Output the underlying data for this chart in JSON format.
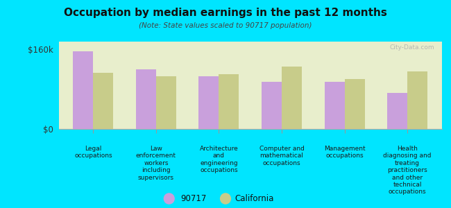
{
  "title": "Occupation by median earnings in the past 12 months",
  "subtitle": "(Note: State values scaled to 90717 population)",
  "categories": [
    "Legal\noccupations",
    "Law\nenforcement\nworkers\nincluding\nsupervisors",
    "Architecture\nand\nengineering\noccupations",
    "Computer and\nmathematical\noccupations",
    "Management\noccupations",
    "Health\ndiagnosing and\ntreating\npractitioners\nand other\ntechnical\noccupations"
  ],
  "values_90717": [
    155000,
    120000,
    105000,
    95000,
    95000,
    72000
  ],
  "values_california": [
    113000,
    106000,
    110000,
    125000,
    100000,
    115000
  ],
  "color_90717": "#c9a0dc",
  "color_california": "#c8cc8a",
  "background_outer": "#00e5ff",
  "background_inner": "#e8eecc",
  "ylim": [
    0,
    175000
  ],
  "ytick_labels": [
    "$0",
    "$160k"
  ],
  "ytick_values": [
    0,
    160000
  ],
  "bar_width": 0.32,
  "legend_labels": [
    "90717",
    "California"
  ],
  "watermark": "City-Data.com"
}
